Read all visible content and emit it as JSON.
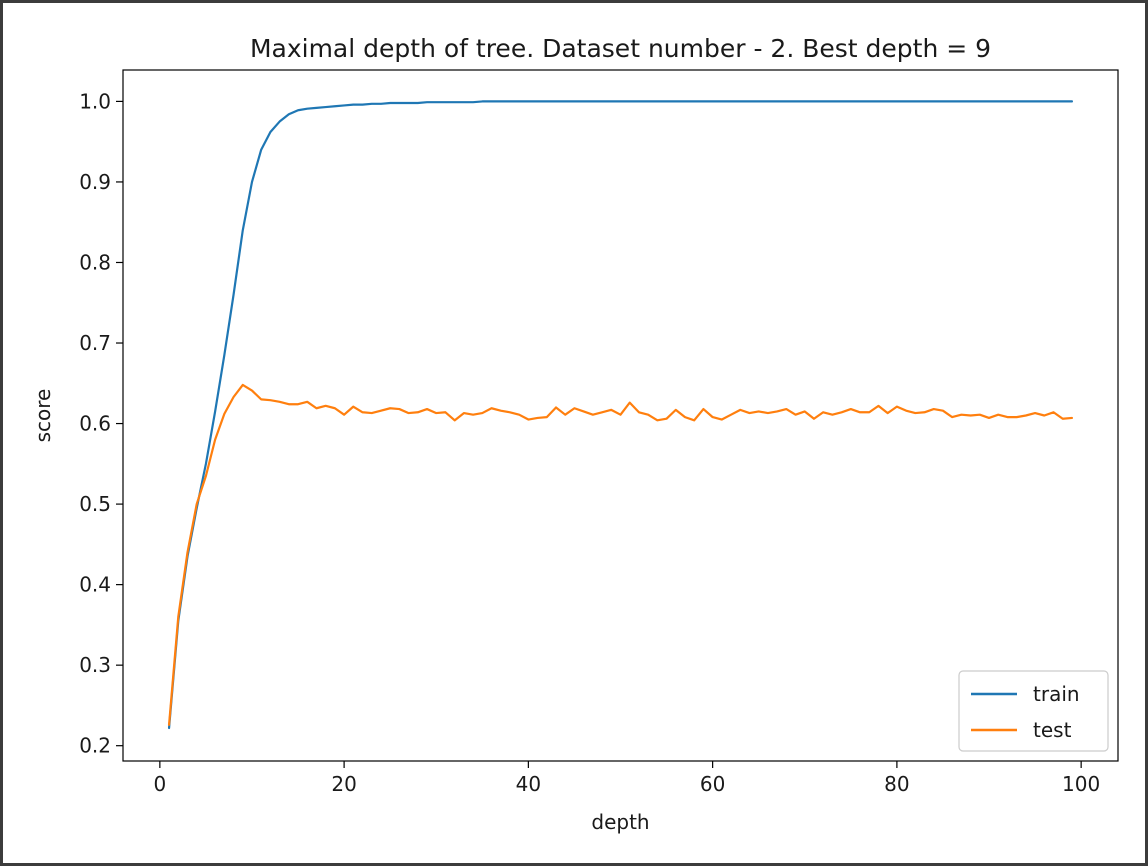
{
  "chart_data": {
    "type": "line",
    "title": "Maximal depth of tree. Dataset number - 2. Best depth = 9",
    "xlabel": "depth",
    "ylabel": "score",
    "xlim": [
      -4.0,
      104.0
    ],
    "ylim": [
      0.181,
      1.039
    ],
    "xticks": [
      0,
      20,
      40,
      60,
      80,
      100
    ],
    "yticks": [
      0.2,
      0.3,
      0.4,
      0.5,
      0.6,
      0.7,
      0.8,
      0.9,
      1.0
    ],
    "xtick_labels": [
      "0",
      "20",
      "40",
      "60",
      "80",
      "100"
    ],
    "ytick_labels": [
      "0.2",
      "0.3",
      "0.4",
      "0.5",
      "0.6",
      "0.7",
      "0.8",
      "0.9",
      "1.0"
    ],
    "grid": false,
    "legend": {
      "position": "bottom-right",
      "entries": [
        "train",
        "test"
      ]
    },
    "x": [
      1,
      2,
      3,
      4,
      5,
      6,
      7,
      8,
      9,
      10,
      11,
      12,
      13,
      14,
      15,
      16,
      17,
      18,
      19,
      20,
      21,
      22,
      23,
      24,
      25,
      26,
      27,
      28,
      29,
      30,
      31,
      32,
      33,
      34,
      35,
      36,
      37,
      38,
      39,
      40,
      41,
      42,
      43,
      44,
      45,
      46,
      47,
      48,
      49,
      50,
      51,
      52,
      53,
      54,
      55,
      56,
      57,
      58,
      59,
      60,
      61,
      62,
      63,
      64,
      65,
      66,
      67,
      68,
      69,
      70,
      71,
      72,
      73,
      74,
      75,
      76,
      77,
      78,
      79,
      80,
      81,
      82,
      83,
      84,
      85,
      86,
      87,
      88,
      89,
      90,
      91,
      92,
      93,
      94,
      95,
      96,
      97,
      98,
      99
    ],
    "series": [
      {
        "name": "train",
        "color": "#1f77b4",
        "values": [
          0.222,
          0.355,
          0.435,
          0.495,
          0.55,
          0.615,
          0.685,
          0.76,
          0.84,
          0.9,
          0.94,
          0.962,
          0.975,
          0.984,
          0.989,
          0.991,
          0.992,
          0.993,
          0.994,
          0.995,
          0.996,
          0.996,
          0.997,
          0.997,
          0.998,
          0.998,
          0.998,
          0.998,
          0.999,
          0.999,
          0.999,
          0.999,
          0.999,
          0.999,
          1.0,
          1.0,
          1.0,
          1.0,
          1.0,
          1.0,
          1.0,
          1.0,
          1.0,
          1.0,
          1.0,
          1.0,
          1.0,
          1.0,
          1.0,
          1.0,
          1.0,
          1.0,
          1.0,
          1.0,
          1.0,
          1.0,
          1.0,
          1.0,
          1.0,
          1.0,
          1.0,
          1.0,
          1.0,
          1.0,
          1.0,
          1.0,
          1.0,
          1.0,
          1.0,
          1.0,
          1.0,
          1.0,
          1.0,
          1.0,
          1.0,
          1.0,
          1.0,
          1.0,
          1.0,
          1.0,
          1.0,
          1.0,
          1.0,
          1.0,
          1.0,
          1.0,
          1.0,
          1.0,
          1.0,
          1.0,
          1.0,
          1.0,
          1.0,
          1.0,
          1.0,
          1.0,
          1.0,
          1.0,
          1.0
        ]
      },
      {
        "name": "test",
        "color": "#ff7f0e",
        "values": [
          0.226,
          0.36,
          0.44,
          0.5,
          0.535,
          0.58,
          0.612,
          0.633,
          0.648,
          0.641,
          0.63,
          0.629,
          0.627,
          0.624,
          0.624,
          0.627,
          0.619,
          0.622,
          0.619,
          0.611,
          0.621,
          0.614,
          0.613,
          0.616,
          0.619,
          0.618,
          0.613,
          0.614,
          0.618,
          0.613,
          0.614,
          0.604,
          0.613,
          0.611,
          0.613,
          0.619,
          0.616,
          0.614,
          0.611,
          0.605,
          0.607,
          0.608,
          0.62,
          0.611,
          0.619,
          0.615,
          0.611,
          0.614,
          0.617,
          0.611,
          0.626,
          0.614,
          0.611,
          0.604,
          0.606,
          0.617,
          0.608,
          0.604,
          0.618,
          0.608,
          0.605,
          0.611,
          0.617,
          0.613,
          0.615,
          0.613,
          0.615,
          0.618,
          0.611,
          0.615,
          0.606,
          0.614,
          0.611,
          0.614,
          0.618,
          0.614,
          0.614,
          0.622,
          0.613,
          0.621,
          0.616,
          0.613,
          0.614,
          0.618,
          0.616,
          0.608,
          0.611,
          0.61,
          0.611,
          0.607,
          0.611,
          0.608,
          0.608,
          0.61,
          0.613,
          0.61,
          0.614,
          0.606,
          0.607
        ]
      }
    ]
  }
}
